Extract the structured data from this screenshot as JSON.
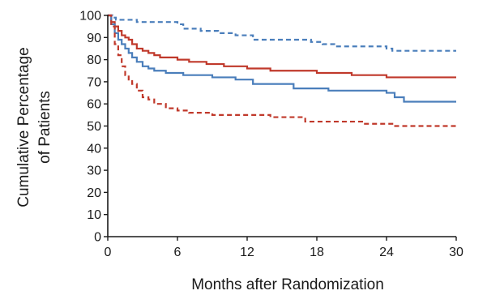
{
  "chart_data": {
    "type": "line",
    "title": "",
    "xlabel": "Months after Randomization",
    "ylabel_lines": [
      "Cumulative Percentage",
      "of Patients"
    ],
    "xlim": [
      0,
      30
    ],
    "ylim": [
      0,
      100
    ],
    "x_ticks": [
      "0",
      "6",
      "12",
      "18",
      "24",
      "30"
    ],
    "y_ticks": [
      "0",
      "10",
      "20",
      "30",
      "40",
      "50",
      "60",
      "70",
      "80",
      "90",
      "100"
    ],
    "grid": false,
    "legend": "none",
    "series": [
      {
        "color": "#4a7ebb",
        "dash": "dashed",
        "step": true,
        "x": [
          0,
          0.4,
          0.7,
          1.0,
          1.5,
          2.5,
          3.5,
          5.5,
          6.0,
          6.5,
          8.0,
          9.5,
          11.0,
          12.5,
          15.0,
          17.5,
          18.5,
          19.5,
          21.0,
          24.0,
          24.5,
          30.0
        ],
        "y": [
          100,
          99,
          98,
          98,
          98,
          97,
          97,
          97,
          96,
          94,
          93,
          92,
          91,
          89,
          89,
          88,
          87,
          86,
          86,
          85,
          84,
          84
        ]
      },
      {
        "color": "#c0392b",
        "dash": "solid",
        "step": true,
        "x": [
          0,
          0.3,
          0.6,
          0.9,
          1.2,
          1.5,
          1.8,
          2.1,
          2.5,
          3.0,
          3.5,
          4.0,
          4.5,
          5.0,
          6.0,
          7.0,
          8.5,
          10.0,
          12.0,
          14.0,
          16.0,
          18.0,
          21.0,
          24.0,
          30.0
        ],
        "y": [
          100,
          97,
          95,
          93,
          91,
          90,
          89,
          87,
          85,
          84,
          83,
          82,
          81,
          81,
          80,
          79,
          78,
          77,
          76,
          75,
          75,
          74,
          73,
          72,
          72
        ]
      },
      {
        "color": "#4a7ebb",
        "dash": "solid",
        "step": true,
        "x": [
          0,
          0.3,
          0.6,
          0.9,
          1.2,
          1.5,
          1.8,
          2.1,
          2.5,
          3.0,
          3.5,
          4.0,
          5.0,
          6.5,
          9.0,
          11.0,
          12.5,
          16.0,
          19.0,
          24.0,
          24.7,
          25.5,
          30.0
        ],
        "y": [
          100,
          96,
          92,
          89,
          87,
          85,
          83,
          81,
          79,
          77,
          76,
          75,
          74,
          73,
          72,
          71,
          69,
          67,
          66,
          65,
          63,
          61,
          61
        ]
      },
      {
        "color": "#c0392b",
        "dash": "dashed",
        "step": true,
        "x": [
          0,
          0.3,
          0.6,
          0.9,
          1.2,
          1.5,
          1.8,
          2.1,
          2.5,
          3.0,
          3.5,
          4.0,
          5.0,
          6.0,
          7.0,
          9.0,
          12.0,
          14.0,
          17.0,
          20.0,
          22.0,
          24.0,
          24.5,
          30.0
        ],
        "y": [
          100,
          95,
          87,
          82,
          77,
          73,
          71,
          69,
          66,
          63,
          62,
          60,
          58,
          57,
          56,
          55,
          55,
          54,
          52,
          52,
          51,
          51,
          50,
          50
        ]
      }
    ]
  }
}
